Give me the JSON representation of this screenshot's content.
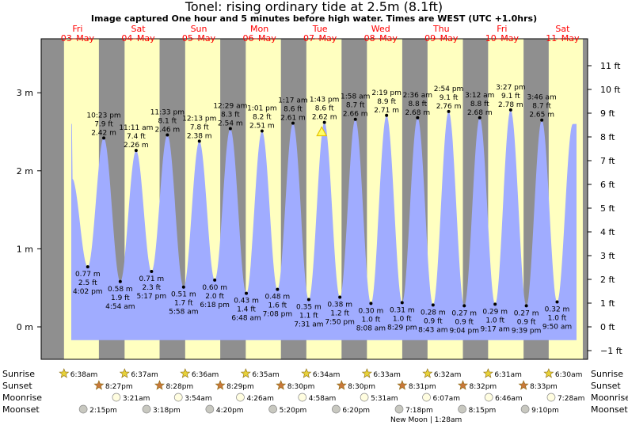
{
  "title": "Tonel: rising  ordinary tide at 2.5m (8.1ft)",
  "subtitle": "Image captured One hour and 5 minutes before high water. Times are WEST (UTC +1.0hrs)",
  "days": [
    {
      "dow": "Fri",
      "date": "03–May"
    },
    {
      "dow": "Sat",
      "date": "04–May"
    },
    {
      "dow": "Sun",
      "date": "05–May"
    },
    {
      "dow": "Mon",
      "date": "06–May"
    },
    {
      "dow": "Tue",
      "date": "07–May"
    },
    {
      "dow": "Wed",
      "date": "08–May"
    },
    {
      "dow": "Thu",
      "date": "09–May"
    },
    {
      "dow": "Fri",
      "date": "10–May"
    },
    {
      "dow": "Sat",
      "date": "11–May"
    }
  ],
  "rows": {
    "sunrise": {
      "label": "Sunrise",
      "times": [
        "6:38am",
        "6:37am",
        "6:36am",
        "6:35am",
        "6:34am",
        "6:33am",
        "6:32am",
        "6:31am",
        "6:30am"
      ]
    },
    "sunset": {
      "label": "Sunset",
      "times": [
        "8:27pm",
        "8:28pm",
        "8:29pm",
        "8:30pm",
        "8:30pm",
        "8:31pm",
        "8:32pm",
        "8:33pm"
      ]
    },
    "moonrise": {
      "label": "Moonrise",
      "times": [
        "3:21am",
        "3:54am",
        "4:26am",
        "4:58am",
        "5:31am",
        "6:07am",
        "6:46am",
        "7:28am"
      ]
    },
    "moonset": {
      "label": "Moonset",
      "times": [
        "2:15pm",
        "3:18pm",
        "4:20pm",
        "5:20pm",
        "6:20pm",
        "7:18pm",
        "8:15pm",
        "9:10pm"
      ]
    }
  },
  "new_moon_note": "New Moon | 1:28am",
  "colors": {
    "night": "#8f8f8f",
    "day": "#ffffc0",
    "tide": "#a0acff",
    "header_text": "#ff0000",
    "current_marker": "#e6c200"
  },
  "chart_data": {
    "type": "area",
    "x_unit": "hours from 03-May 00:00 (WEST)",
    "ylim_m": [
      -0.5,
      3.6
    ],
    "y_ticks_m": [
      "0 m",
      "1 m",
      "2 m",
      "3 m"
    ],
    "y_ticks_ft": [
      "−1 ft",
      "0 ft",
      "1 ft",
      "2 ft",
      "3 ft",
      "4 ft",
      "5 ft",
      "6 ft",
      "7 ft",
      "8 ft",
      "9 ft",
      "10 ft",
      "11 ft"
    ],
    "current_level_m": 2.5,
    "tide_extremes": [
      {
        "type": "low",
        "day": 0,
        "time": "4:02 pm",
        "m": "0.77 m",
        "ft": "2.5 ft",
        "h": 16.03,
        "v": 0.77
      },
      {
        "type": "high",
        "day": 0,
        "time": "10:23 pm",
        "m": "2.42 m",
        "ft": "7.9 ft",
        "h": 22.38,
        "v": 2.42
      },
      {
        "type": "low",
        "day": 1,
        "time": "4:54 am",
        "m": "0.58 m",
        "ft": "1.9 ft",
        "h": 28.9,
        "v": 0.58
      },
      {
        "type": "high",
        "day": 1,
        "time": "11:11 am",
        "m": "2.26 m",
        "ft": "7.4 ft",
        "h": 35.18,
        "v": 2.26
      },
      {
        "type": "low",
        "day": 1,
        "time": "5:17 pm",
        "m": "0.71 m",
        "ft": "2.3 ft",
        "h": 41.28,
        "v": 0.71
      },
      {
        "type": "high",
        "day": 1,
        "time": "11:33 pm",
        "m": "2.46 m",
        "ft": "8.1 ft",
        "h": 47.55,
        "v": 2.46
      },
      {
        "type": "low",
        "day": 2,
        "time": "5:58 am",
        "m": "0.51 m",
        "ft": "1.7 ft",
        "h": 53.97,
        "v": 0.51
      },
      {
        "type": "high",
        "day": 2,
        "time": "12:13 pm",
        "m": "2.38 m",
        "ft": "7.8 ft",
        "h": 60.22,
        "v": 2.38
      },
      {
        "type": "low",
        "day": 2,
        "time": "6:18 pm",
        "m": "0.60 m",
        "ft": "2.0 ft",
        "h": 66.3,
        "v": 0.6
      },
      {
        "type": "high",
        "day": 3,
        "time": "12:29 am",
        "m": "2.54 m",
        "ft": "8.3 ft",
        "h": 72.48,
        "v": 2.54
      },
      {
        "type": "low",
        "day": 3,
        "time": "6:48 am",
        "m": "0.43 m",
        "ft": "1.4 ft",
        "h": 78.8,
        "v": 0.43
      },
      {
        "type": "high",
        "day": 3,
        "time": "1:01 pm",
        "m": "2.51 m",
        "ft": "8.2 ft",
        "h": 85.02,
        "v": 2.51
      },
      {
        "type": "low",
        "day": 3,
        "time": "7:08 pm",
        "m": "0.48 m",
        "ft": "1.6 ft",
        "h": 91.13,
        "v": 0.48
      },
      {
        "type": "high",
        "day": 4,
        "time": "1:17 am",
        "m": "2.61 m",
        "ft": "8.6 ft",
        "h": 97.28,
        "v": 2.61
      },
      {
        "type": "low",
        "day": 4,
        "time": "7:31 am",
        "m": "0.35 m",
        "ft": "1.1 ft",
        "h": 103.52,
        "v": 0.35
      },
      {
        "type": "high",
        "day": 4,
        "time": "1:43 pm",
        "m": "2.62 m",
        "ft": "8.6 ft",
        "h": 109.72,
        "v": 2.62
      },
      {
        "type": "low",
        "day": 4,
        "time": "7:50 pm",
        "m": "0.38 m",
        "ft": "1.2 ft",
        "h": 115.83,
        "v": 0.38
      },
      {
        "type": "high",
        "day": 5,
        "time": "1:58 am",
        "m": "2.66 m",
        "ft": "8.7 ft",
        "h": 121.97,
        "v": 2.66
      },
      {
        "type": "low",
        "day": 5,
        "time": "8:08 am",
        "m": "0.30 m",
        "ft": "1.0 ft",
        "h": 128.13,
        "v": 0.3
      },
      {
        "type": "high",
        "day": 5,
        "time": "2:19 pm",
        "m": "2.71 m",
        "ft": "8.9 ft",
        "h": 134.32,
        "v": 2.71
      },
      {
        "type": "low",
        "day": 5,
        "time": "8:29 pm",
        "m": "0.31 m",
        "ft": "1.0 ft",
        "h": 140.48,
        "v": 0.31
      },
      {
        "type": "high",
        "day": 6,
        "time": "2:36 am",
        "m": "2.68 m",
        "ft": "8.8 ft",
        "h": 146.6,
        "v": 2.68
      },
      {
        "type": "low",
        "day": 6,
        "time": "8:43 am",
        "m": "0.28 m",
        "ft": "0.9 ft",
        "h": 152.72,
        "v": 0.28
      },
      {
        "type": "high",
        "day": 6,
        "time": "2:54 pm",
        "m": "2.76 m",
        "ft": "9.1 ft",
        "h": 158.9,
        "v": 2.76
      },
      {
        "type": "low",
        "day": 6,
        "time": "9:04 pm",
        "m": "0.27 m",
        "ft": "0.9 ft",
        "h": 165.07,
        "v": 0.27
      },
      {
        "type": "high",
        "day": 7,
        "time": "3:12 am",
        "m": "2.68 m",
        "ft": "8.8 ft",
        "h": 171.2,
        "v": 2.68
      },
      {
        "type": "low",
        "day": 7,
        "time": "9:17 am",
        "m": "0.29 m",
        "ft": "1.0 ft",
        "h": 177.28,
        "v": 0.29
      },
      {
        "type": "high",
        "day": 7,
        "time": "3:27 pm",
        "m": "2.78 m",
        "ft": "9.1 ft",
        "h": 183.45,
        "v": 2.78
      },
      {
        "type": "low",
        "day": 7,
        "time": "9:39 pm",
        "m": "0.27 m",
        "ft": "0.9 ft",
        "h": 189.65,
        "v": 0.27
      },
      {
        "type": "high",
        "day": 8,
        "time": "3:46 am",
        "m": "2.65 m",
        "ft": "8.7 ft",
        "h": 195.77,
        "v": 2.65
      },
      {
        "type": "low",
        "day": 8,
        "time": "9:50 am",
        "m": "0.32 m",
        "ft": "1.0 ft",
        "h": 201.83,
        "v": 0.32
      }
    ],
    "sunrise_h": [
      6.63,
      30.62,
      54.6,
      78.58,
      102.57,
      126.55,
      150.53,
      174.52,
      198.5
    ],
    "sunset_h": [
      20.45,
      44.47,
      68.48,
      92.5,
      116.5,
      140.52,
      164.53,
      188.55
    ],
    "moonrise_h": [
      27.35,
      51.9,
      76.43,
      100.97,
      125.52,
      150.12,
      174.77,
      199.47
    ],
    "moonset_h": [
      14.25,
      39.3,
      64.33,
      89.33,
      114.33,
      139.3,
      164.25,
      189.17
    ]
  }
}
